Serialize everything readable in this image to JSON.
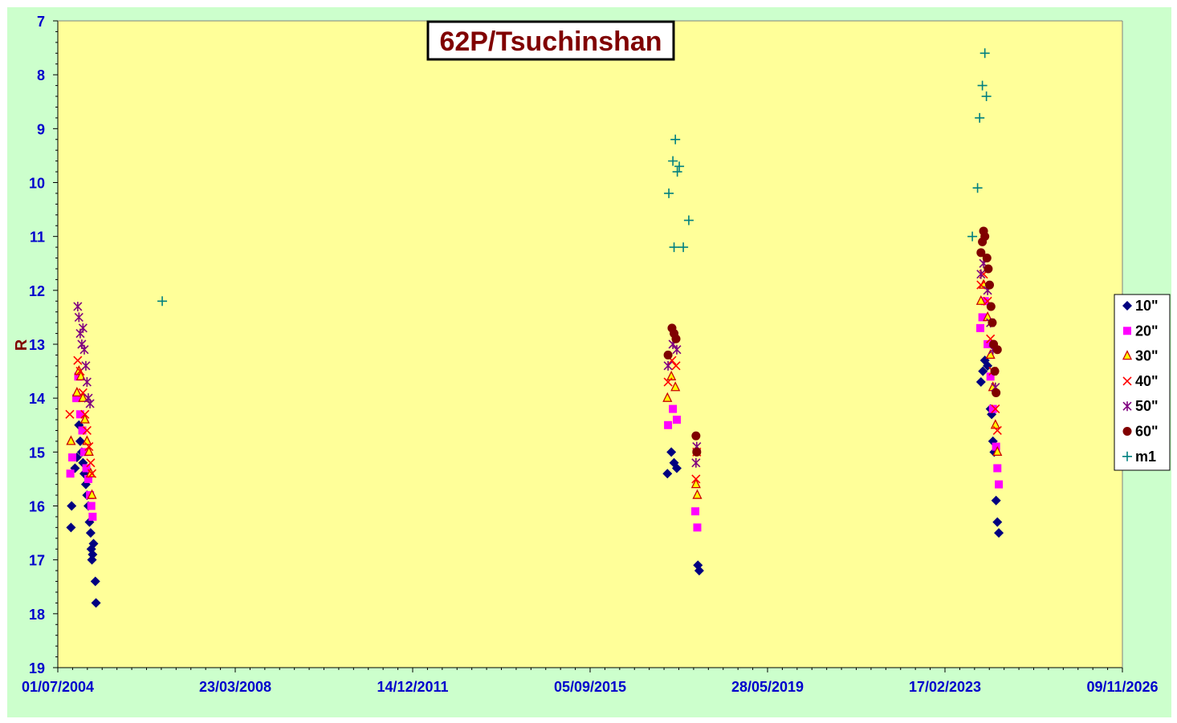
{
  "chart_data": {
    "type": "scatter",
    "title": "62P/Tsuchinshan",
    "xlabel": "",
    "ylabel": "R",
    "x_axis": {
      "kind": "date",
      "range": [
        "01/07/2004",
        "09/11/2026"
      ],
      "tick_labels": [
        "01/07/2004",
        "23/03/2008",
        "14/12/2011",
        "05/09/2015",
        "28/05/2019",
        "17/02/2023",
        "09/11/2026"
      ]
    },
    "y_axis": {
      "range": [
        7,
        19
      ],
      "reversed": true,
      "tick_labels": [
        "7",
        "8",
        "9",
        "10",
        "11",
        "12",
        "13",
        "14",
        "15",
        "16",
        "17",
        "18",
        "19"
      ]
    },
    "grid": false,
    "legend_position": "right",
    "colors": {
      "outer_background": "#ccffcc",
      "plot_background": "#ffff99",
      "tick_text": "#0000cc",
      "title_text": "#800000"
    },
    "series": [
      {
        "name": "10\"",
        "marker": "diamond",
        "color": "#000080",
        "points": [
          [
            "2004-10-10",
            16.4
          ],
          [
            "2004-10-15",
            16.0
          ],
          [
            "2004-11-10",
            15.3
          ],
          [
            "2004-11-25",
            15.1
          ],
          [
            "2004-12-10",
            14.5
          ],
          [
            "2004-12-20",
            14.8
          ],
          [
            "2005-01-01",
            15.0
          ],
          [
            "2005-01-10",
            15.2
          ],
          [
            "2005-01-20",
            15.4
          ],
          [
            "2005-02-01",
            15.6
          ],
          [
            "2005-02-10",
            15.8
          ],
          [
            "2005-02-20",
            16.0
          ],
          [
            "2005-03-01",
            16.3
          ],
          [
            "2005-03-10",
            16.5
          ],
          [
            "2005-03-15",
            16.8
          ],
          [
            "2005-03-20",
            17.0
          ],
          [
            "2005-03-25",
            16.9
          ],
          [
            "2005-04-01",
            16.7
          ],
          [
            "2005-04-15",
            17.4
          ],
          [
            "2005-04-20",
            17.8
          ],
          [
            "2017-04-20",
            15.4
          ],
          [
            "2017-05-20",
            15.0
          ],
          [
            "2017-06-10",
            15.2
          ],
          [
            "2017-07-01",
            15.3
          ],
          [
            "2017-12-10",
            17.1
          ],
          [
            "2017-12-20",
            17.2
          ],
          [
            "2023-11-20",
            13.7
          ],
          [
            "2023-12-05",
            13.5
          ],
          [
            "2023-12-20",
            13.3
          ],
          [
            "2024-01-10",
            13.4
          ],
          [
            "2024-02-01",
            14.2
          ],
          [
            "2024-02-10",
            14.3
          ],
          [
            "2024-02-20",
            14.8
          ],
          [
            "2024-03-01",
            15.0
          ],
          [
            "2024-03-15",
            15.9
          ],
          [
            "2024-03-25",
            16.3
          ],
          [
            "2024-04-05",
            16.5
          ]
        ]
      },
      {
        "name": "20\"",
        "marker": "square",
        "color": "#ff00ff",
        "points": [
          [
            "2004-10-05",
            15.4
          ],
          [
            "2004-10-20",
            15.1
          ],
          [
            "2004-11-20",
            14.0
          ],
          [
            "2004-12-05",
            13.6
          ],
          [
            "2004-12-20",
            14.3
          ],
          [
            "2005-01-05",
            14.6
          ],
          [
            "2005-01-20",
            15.0
          ],
          [
            "2005-02-05",
            15.3
          ],
          [
            "2005-02-20",
            15.5
          ],
          [
            "2005-03-05",
            15.8
          ],
          [
            "2005-03-15",
            16.0
          ],
          [
            "2005-03-25",
            16.2
          ],
          [
            "2017-04-25",
            14.5
          ],
          [
            "2017-06-01",
            14.2
          ],
          [
            "2017-07-01",
            14.4
          ],
          [
            "2017-11-20",
            16.1
          ],
          [
            "2017-12-05",
            16.4
          ],
          [
            "2023-11-15",
            12.7
          ],
          [
            "2023-12-01",
            12.5
          ],
          [
            "2023-12-20",
            12.2
          ],
          [
            "2024-01-10",
            13.0
          ],
          [
            "2024-02-01",
            13.6
          ],
          [
            "2024-02-20",
            14.2
          ],
          [
            "2024-03-15",
            14.9
          ],
          [
            "2024-03-25",
            15.3
          ],
          [
            "2024-04-05",
            15.6
          ]
        ]
      },
      {
        "name": "30\"",
        "marker": "triangle",
        "color": "#ffff00",
        "stroke": "#cc0000",
        "points": [
          [
            "2004-10-10",
            14.8
          ],
          [
            "2004-11-25",
            13.9
          ],
          [
            "2004-12-10",
            13.5
          ],
          [
            "2004-12-25",
            13.6
          ],
          [
            "2005-01-10",
            14.0
          ],
          [
            "2005-01-25",
            14.4
          ],
          [
            "2005-02-10",
            14.8
          ],
          [
            "2005-02-25",
            15.0
          ],
          [
            "2005-03-10",
            15.4
          ],
          [
            "2005-03-20",
            15.8
          ],
          [
            "2017-04-20",
            14.0
          ],
          [
            "2017-05-20",
            13.6
          ],
          [
            "2017-06-20",
            13.8
          ],
          [
            "2017-11-25",
            15.6
          ],
          [
            "2017-12-05",
            15.8
          ],
          [
            "2023-11-20",
            12.2
          ],
          [
            "2023-12-10",
            11.9
          ],
          [
            "2024-01-10",
            12.5
          ],
          [
            "2024-02-01",
            13.2
          ],
          [
            "2024-02-20",
            13.8
          ],
          [
            "2024-03-10",
            14.5
          ],
          [
            "2024-03-25",
            15.0
          ]
        ]
      },
      {
        "name": "40\"",
        "marker": "x",
        "color": "#ff0000",
        "points": [
          [
            "2004-10-01",
            14.3
          ],
          [
            "2004-12-01",
            13.3
          ],
          [
            "2004-12-20",
            13.5
          ],
          [
            "2005-01-10",
            13.9
          ],
          [
            "2005-01-25",
            14.3
          ],
          [
            "2005-02-10",
            14.6
          ],
          [
            "2005-02-25",
            14.9
          ],
          [
            "2005-03-10",
            15.2
          ],
          [
            "2005-03-20",
            15.4
          ],
          [
            "2017-04-25",
            13.7
          ],
          [
            "2017-05-25",
            13.3
          ],
          [
            "2017-06-25",
            13.4
          ],
          [
            "2017-11-25",
            15.5
          ],
          [
            "2017-12-01",
            15.0
          ],
          [
            "2023-11-20",
            11.9
          ],
          [
            "2023-12-10",
            11.7
          ],
          [
            "2024-01-10",
            12.2
          ],
          [
            "2024-02-01",
            12.9
          ],
          [
            "2024-02-20",
            13.5
          ],
          [
            "2024-03-10",
            14.2
          ],
          [
            "2024-03-25",
            14.6
          ]
        ]
      },
      {
        "name": "50\"",
        "marker": "star",
        "color": "#800080",
        "points": [
          [
            "2004-12-01",
            12.3
          ],
          [
            "2004-12-10",
            12.5
          ],
          [
            "2004-12-20",
            12.8
          ],
          [
            "2005-01-01",
            13.0
          ],
          [
            "2005-01-10",
            12.7
          ],
          [
            "2005-01-20",
            13.1
          ],
          [
            "2005-02-01",
            13.4
          ],
          [
            "2005-02-10",
            13.7
          ],
          [
            "2005-02-20",
            14.0
          ],
          [
            "2005-03-05",
            14.1
          ],
          [
            "2017-04-25",
            13.4
          ],
          [
            "2017-06-01",
            13.0
          ],
          [
            "2017-07-01",
            13.1
          ],
          [
            "2017-11-25",
            15.2
          ],
          [
            "2017-12-01",
            14.9
          ],
          [
            "2023-11-20",
            11.7
          ],
          [
            "2023-12-10",
            11.5
          ],
          [
            "2024-01-10",
            12.0
          ],
          [
            "2024-02-01",
            12.6
          ],
          [
            "2024-02-20",
            13.1
          ],
          [
            "2024-03-10",
            13.8
          ]
        ]
      },
      {
        "name": "60\"",
        "marker": "circle",
        "color": "#800000",
        "points": [
          [
            "2017-04-25",
            13.2
          ],
          [
            "2017-05-25",
            12.7
          ],
          [
            "2017-06-10",
            12.8
          ],
          [
            "2017-06-25",
            12.9
          ],
          [
            "2017-11-25",
            14.7
          ],
          [
            "2017-12-01",
            15.0
          ],
          [
            "2023-11-20",
            11.3
          ],
          [
            "2023-12-01",
            11.1
          ],
          [
            "2023-12-10",
            10.9
          ],
          [
            "2023-12-20",
            11.0
          ],
          [
            "2024-01-05",
            11.4
          ],
          [
            "2024-01-15",
            11.6
          ],
          [
            "2024-01-25",
            11.9
          ],
          [
            "2024-02-05",
            12.3
          ],
          [
            "2024-02-15",
            12.6
          ],
          [
            "2024-02-25",
            13.0
          ],
          [
            "2024-03-05",
            13.5
          ],
          [
            "2024-03-15",
            13.9
          ],
          [
            "2024-03-25",
            13.1
          ]
        ]
      },
      {
        "name": "m1",
        "marker": "plus",
        "color": "#008080",
        "points": [
          [
            "2006-09-10",
            12.2
          ],
          [
            "2017-05-01",
            10.2
          ],
          [
            "2017-06-01",
            9.6
          ],
          [
            "2017-06-20",
            9.2
          ],
          [
            "2017-07-05",
            9.8
          ],
          [
            "2017-07-20",
            9.7
          ],
          [
            "2017-06-10",
            11.2
          ],
          [
            "2017-08-20",
            11.2
          ],
          [
            "2017-10-01",
            10.7
          ],
          [
            "2023-09-15",
            11.0
          ],
          [
            "2023-10-25",
            10.1
          ],
          [
            "2023-11-10",
            8.8
          ],
          [
            "2023-12-01",
            8.2
          ],
          [
            "2024-01-01",
            8.4
          ],
          [
            "2023-12-20",
            7.6
          ]
        ]
      }
    ]
  }
}
